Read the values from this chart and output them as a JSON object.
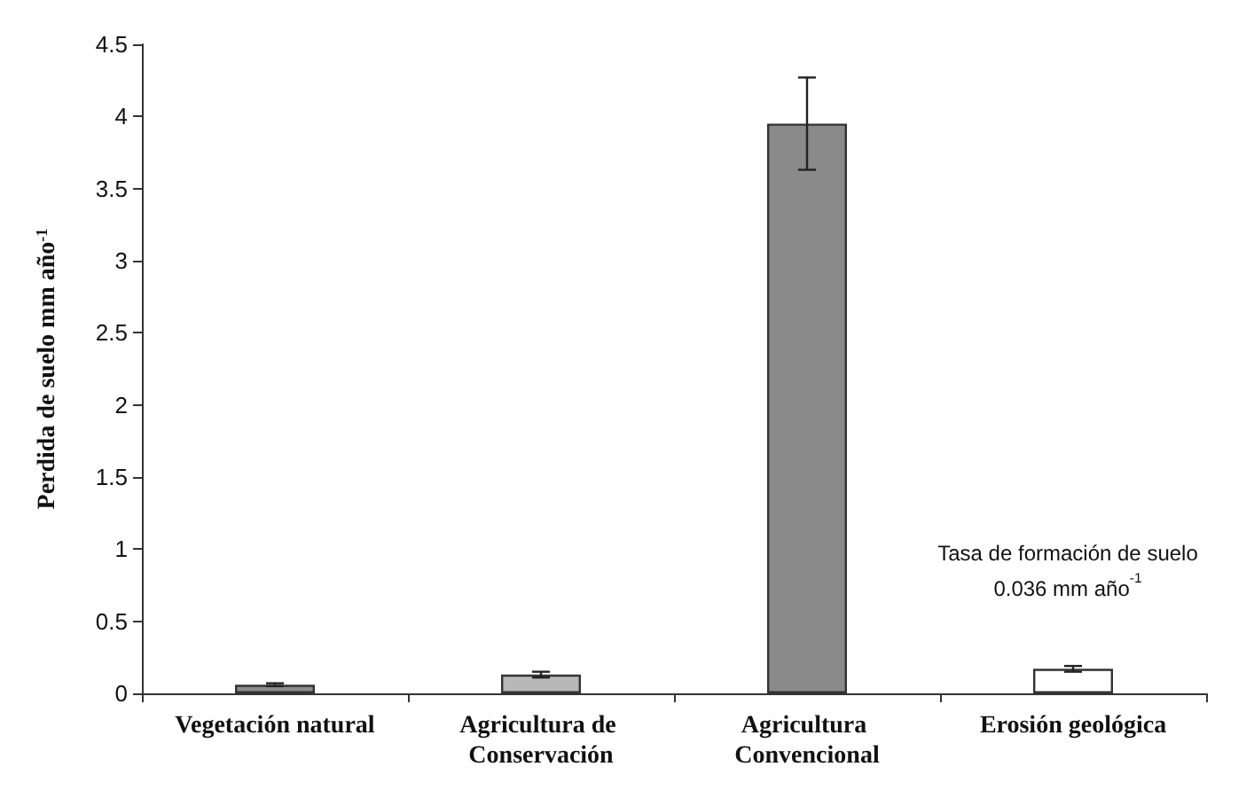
{
  "chart_data": {
    "type": "bar",
    "ylabel": "Perdida de suelo mm año$^{-1}$",
    "categories": [
      "Vegetación natural",
      "Agricultura de Conservación",
      "Agricultura Convencional",
      "Erosión geológica"
    ],
    "values": [
      0.06,
      0.13,
      3.95,
      0.17
    ],
    "errors": [
      0.01,
      0.02,
      0.32,
      0.02
    ],
    "colors": [
      "#8c8c8c",
      "#b8b8b8",
      "#8a8a8a",
      "#ffffff"
    ],
    "ylim": [
      0,
      4.5
    ],
    "yticks": [
      0,
      0.5,
      1,
      1.5,
      2,
      2.5,
      3,
      3.5,
      4,
      4.5
    ],
    "grid": false,
    "annotations": [
      "Tasa de formación de suelo\n0.036 mm año$^{-1}$"
    ]
  }
}
